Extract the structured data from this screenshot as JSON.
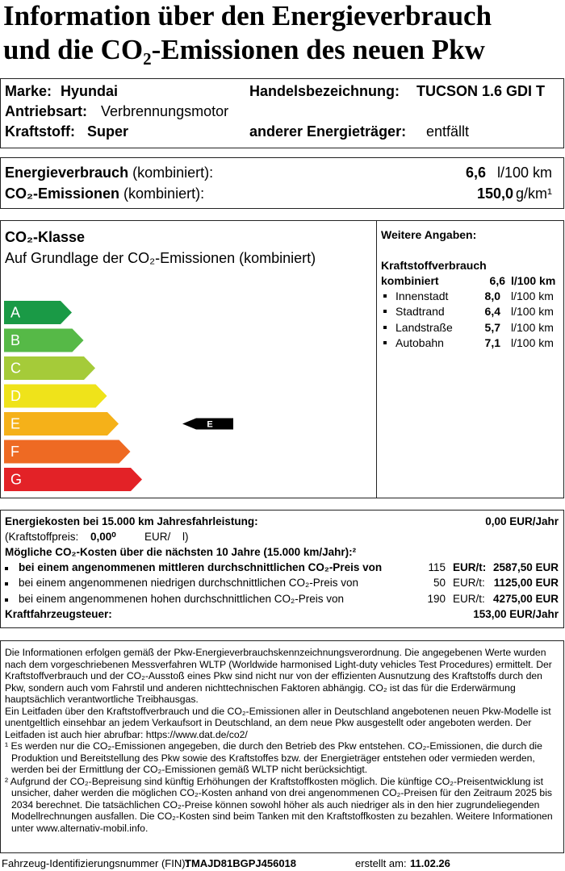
{
  "title": {
    "line1": "Information über den Energieverbrauch",
    "line2": "und die CO₂-Emissionen des neuen Pkw"
  },
  "vehicle": {
    "brand_label": "Marke:",
    "brand": "Hyundai",
    "trade_label": "Handelsbezeichnung:",
    "trade": "TUCSON 1.6 GDI T",
    "drive_label": "Antriebsart:",
    "drive": "Verbrennungsmotor",
    "fuel_label": "Kraftstoff:",
    "fuel": "Super",
    "other_label": "anderer Energieträger:",
    "other": "entfällt"
  },
  "consumption": {
    "energy_label": "Energieverbrauch",
    "energy_note": "(kombiniert):",
    "energy_value": "6,6",
    "energy_unit": "l/100 km",
    "co2_label": "CO₂-Emissionen",
    "co2_note": "(kombiniert):",
    "co2_value": "150,0",
    "co2_unit": "g/km¹"
  },
  "co2_class": {
    "title": "CO₂-Klasse",
    "subtitle": "Auf Grundlage der CO₂-Emissionen (kombiniert)",
    "classes": [
      {
        "label": "A",
        "color": "#1a9a46"
      },
      {
        "label": "B",
        "color": "#56b947"
      },
      {
        "label": "C",
        "color": "#a5cb39"
      },
      {
        "label": "D",
        "color": "#efe31a"
      },
      {
        "label": "E",
        "color": "#f5b119"
      },
      {
        "label": "F",
        "color": "#ee6a23"
      },
      {
        "label": "G",
        "color": "#e32227"
      }
    ],
    "current": "E"
  },
  "further": {
    "heading": "Weitere Angaben:",
    "subheading": "Kraftstoffverbrauch",
    "combined": {
      "name": "kombiniert",
      "value": "6,6",
      "unit": "l/100 km"
    },
    "rows": [
      {
        "name": "Innenstadt",
        "value": "8,0",
        "unit": "l/100 km"
      },
      {
        "name": "Stadtrand",
        "value": "6,4",
        "unit": "l/100 km"
      },
      {
        "name": "Landstraße",
        "value": "5,7",
        "unit": "l/100 km"
      },
      {
        "name": "Autobahn",
        "value": "7,1",
        "unit": "l/100 km"
      }
    ]
  },
  "costs": {
    "energy_label": "Energiekosten bei 15.000 km Jahresfahrleistung:",
    "energy_value": "0,00 EUR/Jahr",
    "fuel_price_label": "(Kraftstoffpreis:",
    "fuel_price": "0,00⁰",
    "fuel_price_unit": "EUR/",
    "fuel_price_end": "l)",
    "co2_heading": "Mögliche CO₂-Kosten über die nächsten 10 Jahre (15.000 km/Jahr):²",
    "co2_rows": [
      {
        "label": "bei einem angenommenen mittleren durchschnittlichen CO₂-Preis von",
        "price": "115",
        "unit": "EUR/t:",
        "amount": "2587,50 EUR"
      },
      {
        "label": "bei einem angenommenen niedrigen durchschnittlichen CO₂-Preis von",
        "price": "50",
        "unit": "EUR/t:",
        "amount": "1125,00 EUR"
      },
      {
        "label": "bei einem angenommenen hohen durchschnittlichen CO₂-Preis von",
        "price": "190",
        "unit": "EUR/t:",
        "amount": "4275,00 EUR"
      }
    ],
    "tax_label": "Kraftfahrzeugsteuer:",
    "tax_value": "153,00 EUR/Jahr"
  },
  "info": {
    "paragraphs": [
      "Die Informationen erfolgen gemäß der Pkw-Energieverbrauchskennzeichnungsverordnung. Die angegebenen Werte wurden nach dem vorgeschriebenen Messverfahren WLTP (Worldwide harmonised Light-duty vehicles Test Procedures) ermittelt. Der Kraftstoffverbrauch und der CO₂-Ausstoß eines Pkw sind nicht nur von der effizienten Ausnutzung des Kraftstoffs durch den Pkw, sondern auch vom Fahrstil und anderen nichttechnischen Faktoren abhängig. CO₂ ist das für die Erderwärmung hauptsächlich verantwortliche Treibhausgas.",
      "Ein Leitfaden über den Kraftstoffverbrauch und die CO₂-Emissionen aller in Deutschland angebotenen neuen Pkw-Modelle ist unentgeltlich einsehbar an jedem Verkaufsort in Deutschland, an dem neue Pkw ausgestellt oder angeboten werden. Der Leitfaden ist auch hier abrufbar:   https://www.dat.de/co2/"
    ],
    "footnotes": [
      "¹ Es werden nur die CO₂-Emissionen angegeben, die durch den Betrieb des Pkw entstehen. CO₂-Emissionen, die durch die Produktion und Bereitstellung des Pkw sowie des Kraftstoffes bzw. der Energieträger entstehen oder vermieden werden, werden bei der Ermittlung der CO₂-Emissionen gemäß WLTP nicht berücksichtigt.",
      "² Aufgrund der CO₂-Bepreisung sind künftig Erhöhungen der Kraftstoffkosten möglich. Die künftige CO₂-Preisentwicklung ist unsicher, daher werden die möglichen CO₂-Kosten anhand von drei angenommenen CO₂-Preisen für den Zeitraum  2025  bis  2034  berechnet. Die tatsächlichen CO₂-Preise können sowohl höher als auch niedriger als in den hier zugrundeliegenden Modellrechnungen ausfallen. Die CO₂-Kosten sind beim Tanken mit den Kraftstoffkosten zu bezahlen. Weitere Informationen unter www.alternativ-mobil.info."
    ]
  },
  "footer": {
    "fin_label": "Fahrzeug-Identifizierungsnummer (FIN):",
    "fin": "TMAJD81BGPJ456018",
    "date_label": "erstellt am:",
    "date": "11.02.26"
  }
}
